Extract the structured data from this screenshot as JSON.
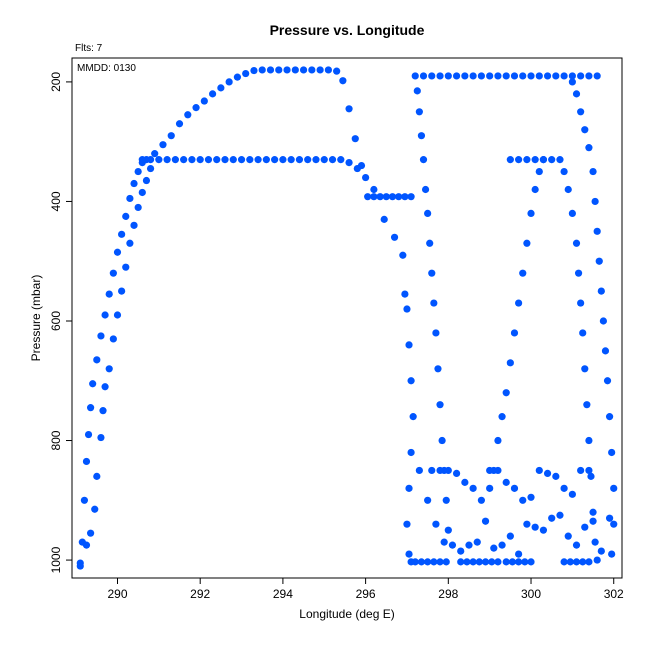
{
  "chart_data": {
    "type": "scatter",
    "title": "Pressure vs. Longitude",
    "xlabel": "Longitude (deg E)",
    "ylabel": "Pressure (mbar)",
    "annotations": {
      "flights": "Flts: 7",
      "date": "MMDD: 0130"
    },
    "xlim": [
      288.9,
      302.2
    ],
    "ylim": [
      1030,
      160
    ],
    "y_inverted": true,
    "grid": false,
    "x_ticks": [
      290,
      292,
      294,
      296,
      298,
      300,
      302
    ],
    "y_ticks": [
      200,
      400,
      600,
      800,
      1000
    ],
    "point_color": "#0055ff",
    "series": [
      {
        "values": [
          [
            289.1,
            1010
          ],
          [
            289.15,
            970
          ],
          [
            289.2,
            900
          ],
          [
            289.25,
            835
          ],
          [
            289.3,
            790
          ],
          [
            289.35,
            745
          ],
          [
            289.4,
            705
          ],
          [
            289.5,
            665
          ],
          [
            289.6,
            625
          ],
          [
            289.7,
            590
          ],
          [
            289.8,
            555
          ],
          [
            289.9,
            520
          ],
          [
            290.0,
            485
          ],
          [
            290.1,
            455
          ],
          [
            290.2,
            425
          ],
          [
            290.3,
            395
          ],
          [
            290.4,
            370
          ],
          [
            290.5,
            350
          ],
          [
            290.6,
            335
          ],
          [
            290.7,
            330
          ],
          [
            290.9,
            320
          ],
          [
            291.1,
            305
          ],
          [
            291.3,
            290
          ],
          [
            291.5,
            270
          ],
          [
            291.7,
            255
          ],
          [
            291.9,
            243
          ],
          [
            292.1,
            232
          ],
          [
            292.3,
            220
          ],
          [
            292.5,
            210
          ],
          [
            292.7,
            200
          ],
          [
            292.9,
            192
          ],
          [
            293.1,
            186
          ],
          [
            293.3,
            181
          ],
          [
            293.5,
            180
          ],
          [
            293.7,
            180
          ],
          [
            293.9,
            180
          ],
          [
            294.1,
            180
          ],
          [
            294.3,
            180
          ],
          [
            294.5,
            180
          ],
          [
            294.7,
            180
          ],
          [
            294.9,
            180
          ],
          [
            295.1,
            180
          ],
          [
            295.3,
            182
          ],
          [
            295.45,
            198
          ],
          [
            295.6,
            245
          ],
          [
            295.75,
            295
          ],
          [
            295.9,
            340
          ],
          [
            289.1,
            1005
          ],
          [
            289.25,
            975
          ],
          [
            289.35,
            955
          ],
          [
            289.45,
            915
          ],
          [
            289.5,
            860
          ],
          [
            289.6,
            795
          ],
          [
            289.65,
            750
          ],
          [
            289.7,
            710
          ],
          [
            289.8,
            680
          ],
          [
            289.9,
            630
          ],
          [
            290.0,
            590
          ],
          [
            290.1,
            550
          ],
          [
            290.2,
            510
          ],
          [
            290.3,
            470
          ],
          [
            290.4,
            440
          ],
          [
            290.5,
            410
          ],
          [
            290.6,
            385
          ],
          [
            290.7,
            365
          ],
          [
            290.8,
            345
          ],
          [
            290.6,
            330
          ],
          [
            290.8,
            330
          ],
          [
            291.0,
            330
          ],
          [
            291.2,
            330
          ],
          [
            291.4,
            330
          ],
          [
            291.6,
            330
          ],
          [
            291.8,
            330
          ],
          [
            292.0,
            330
          ],
          [
            292.2,
            330
          ],
          [
            292.4,
            330
          ],
          [
            292.6,
            330
          ],
          [
            292.8,
            330
          ],
          [
            293.0,
            330
          ],
          [
            293.2,
            330
          ],
          [
            293.4,
            330
          ],
          [
            293.6,
            330
          ],
          [
            293.8,
            330
          ],
          [
            294.0,
            330
          ],
          [
            294.2,
            330
          ],
          [
            294.4,
            330
          ],
          [
            294.6,
            330
          ],
          [
            294.8,
            330
          ],
          [
            295.0,
            330
          ],
          [
            295.2,
            330
          ],
          [
            295.4,
            330
          ],
          [
            295.6,
            335
          ],
          [
            295.8,
            345
          ],
          [
            296.0,
            360
          ],
          [
            296.2,
            380
          ],
          [
            296.05,
            392
          ],
          [
            296.2,
            392
          ],
          [
            296.35,
            392
          ],
          [
            296.5,
            392
          ],
          [
            296.65,
            392
          ],
          [
            296.8,
            392
          ],
          [
            296.95,
            392
          ],
          [
            297.1,
            392
          ],
          [
            296.45,
            430
          ],
          [
            296.7,
            460
          ],
          [
            296.9,
            490
          ],
          [
            296.95,
            555
          ],
          [
            297.0,
            580
          ],
          [
            297.05,
            640
          ],
          [
            297.1,
            700
          ],
          [
            297.15,
            760
          ],
          [
            297.1,
            820
          ],
          [
            297.05,
            880
          ],
          [
            297.0,
            940
          ],
          [
            297.05,
            990
          ],
          [
            297.1,
            1003
          ],
          [
            297.2,
            1003
          ],
          [
            297.35,
            1003
          ],
          [
            297.5,
            1003
          ],
          [
            297.65,
            1003
          ],
          [
            297.8,
            1003
          ],
          [
            297.95,
            1003
          ],
          [
            297.2,
            190
          ],
          [
            297.25,
            215
          ],
          [
            297.3,
            250
          ],
          [
            297.35,
            290
          ],
          [
            297.4,
            330
          ],
          [
            297.45,
            380
          ],
          [
            297.5,
            420
          ],
          [
            297.55,
            470
          ],
          [
            297.6,
            520
          ],
          [
            297.65,
            570
          ],
          [
            297.7,
            620
          ],
          [
            297.75,
            680
          ],
          [
            297.8,
            740
          ],
          [
            297.85,
            800
          ],
          [
            297.9,
            850
          ],
          [
            297.95,
            900
          ],
          [
            298.0,
            950
          ],
          [
            297.4,
            190
          ],
          [
            297.6,
            190
          ],
          [
            297.8,
            190
          ],
          [
            298.0,
            190
          ],
          [
            298.2,
            190
          ],
          [
            298.4,
            190
          ],
          [
            298.6,
            190
          ],
          [
            298.8,
            190
          ],
          [
            299.0,
            190
          ],
          [
            299.2,
            190
          ],
          [
            299.4,
            190
          ],
          [
            299.6,
            190
          ],
          [
            299.8,
            190
          ],
          [
            300.0,
            190
          ],
          [
            300.2,
            190
          ],
          [
            300.4,
            190
          ],
          [
            300.6,
            190
          ],
          [
            300.8,
            190
          ],
          [
            301.0,
            190
          ],
          [
            301.2,
            190
          ],
          [
            301.4,
            190
          ],
          [
            301.6,
            190
          ],
          [
            297.6,
            850
          ],
          [
            297.8,
            850
          ],
          [
            298.0,
            850
          ],
          [
            298.2,
            855
          ],
          [
            298.4,
            870
          ],
          [
            298.6,
            880
          ],
          [
            298.8,
            900
          ],
          [
            299.0,
            850
          ],
          [
            299.2,
            850
          ],
          [
            299.4,
            870
          ],
          [
            299.6,
            880
          ],
          [
            299.8,
            900
          ],
          [
            300.0,
            895
          ],
          [
            300.2,
            850
          ],
          [
            300.4,
            855
          ],
          [
            300.6,
            860
          ],
          [
            300.8,
            880
          ],
          [
            301.0,
            890
          ],
          [
            301.2,
            850
          ],
          [
            301.4,
            850
          ],
          [
            297.3,
            850
          ],
          [
            297.5,
            900
          ],
          [
            297.7,
            940
          ],
          [
            297.9,
            970
          ],
          [
            298.1,
            975
          ],
          [
            298.3,
            985
          ],
          [
            298.5,
            975
          ],
          [
            298.7,
            970
          ],
          [
            298.9,
            935
          ],
          [
            299.1,
            980
          ],
          [
            299.3,
            975
          ],
          [
            299.5,
            960
          ],
          [
            299.7,
            990
          ],
          [
            299.9,
            940
          ],
          [
            300.1,
            945
          ],
          [
            300.3,
            950
          ],
          [
            300.5,
            930
          ],
          [
            300.7,
            925
          ],
          [
            300.9,
            960
          ],
          [
            301.1,
            975
          ],
          [
            301.3,
            945
          ],
          [
            301.5,
            935
          ],
          [
            301.7,
            985
          ],
          [
            301.9,
            930
          ],
          [
            298.3,
            1003
          ],
          [
            298.45,
            1003
          ],
          [
            298.6,
            1003
          ],
          [
            298.75,
            1003
          ],
          [
            298.9,
            1003
          ],
          [
            299.05,
            1003
          ],
          [
            299.2,
            1003
          ],
          [
            299.4,
            1003
          ],
          [
            299.55,
            1003
          ],
          [
            299.7,
            1003
          ],
          [
            299.85,
            1003
          ],
          [
            300.0,
            1003
          ],
          [
            300.8,
            1003
          ],
          [
            300.95,
            1003
          ],
          [
            301.1,
            1003
          ],
          [
            301.25,
            1003
          ],
          [
            301.4,
            1003
          ],
          [
            299.0,
            880
          ],
          [
            299.1,
            850
          ],
          [
            299.2,
            800
          ],
          [
            299.3,
            760
          ],
          [
            299.4,
            720
          ],
          [
            299.5,
            670
          ],
          [
            299.6,
            620
          ],
          [
            299.7,
            570
          ],
          [
            299.8,
            520
          ],
          [
            299.9,
            470
          ],
          [
            300.0,
            420
          ],
          [
            300.1,
            380
          ],
          [
            300.2,
            350
          ],
          [
            300.3,
            330
          ],
          [
            299.5,
            330
          ],
          [
            299.7,
            330
          ],
          [
            299.9,
            330
          ],
          [
            300.1,
            330
          ],
          [
            300.3,
            330
          ],
          [
            300.5,
            330
          ],
          [
            300.7,
            330
          ],
          [
            300.8,
            350
          ],
          [
            300.9,
            380
          ],
          [
            301.0,
            420
          ],
          [
            301.1,
            470
          ],
          [
            301.15,
            520
          ],
          [
            301.2,
            570
          ],
          [
            301.25,
            620
          ],
          [
            301.3,
            680
          ],
          [
            301.35,
            740
          ],
          [
            301.4,
            800
          ],
          [
            301.45,
            860
          ],
          [
            301.5,
            920
          ],
          [
            301.55,
            970
          ],
          [
            301.6,
            1000
          ],
          [
            301.0,
            200
          ],
          [
            301.1,
            220
          ],
          [
            301.2,
            250
          ],
          [
            301.3,
            280
          ],
          [
            301.4,
            310
          ],
          [
            301.5,
            350
          ],
          [
            301.55,
            400
          ],
          [
            301.6,
            450
          ],
          [
            301.65,
            500
          ],
          [
            301.7,
            550
          ],
          [
            301.75,
            600
          ],
          [
            301.8,
            650
          ],
          [
            301.85,
            700
          ],
          [
            301.9,
            760
          ],
          [
            301.95,
            820
          ],
          [
            302.0,
            880
          ],
          [
            302.0,
            940
          ],
          [
            301.95,
            990
          ]
        ]
      }
    ]
  }
}
